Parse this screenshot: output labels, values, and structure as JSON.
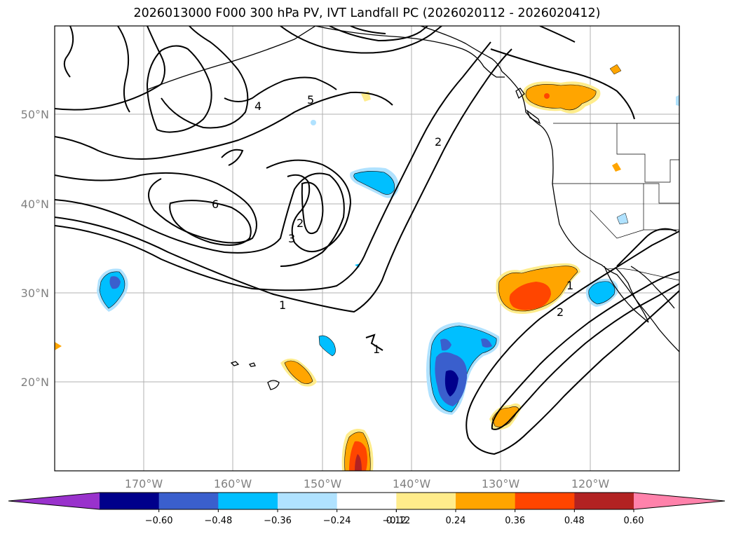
{
  "title": "2026013000 F000 300 hPa PV, IVT Landfall PC (2026020112 - 2026020412)",
  "map": {
    "lat_labels": [
      "50°N",
      "40°N",
      "30°N",
      "20°N"
    ],
    "lon_labels": [
      "170°W",
      "160°W",
      "150°W",
      "140°W",
      "130°W",
      "120°W"
    ],
    "gridlines": true,
    "pv_contour_labels": [
      "1",
      "2",
      "3",
      "4",
      "5",
      "6",
      "1",
      "2",
      "1",
      "2"
    ],
    "filled_field": "IVT Landfall PC",
    "contour_field": "300 hPa PV"
  },
  "colorbar": {
    "ticks": [
      "−0.60",
      "−0.48",
      "−0.36",
      "−0.24",
      "−0.12",
      "0.12",
      "0.24",
      "0.36",
      "0.48",
      "0.60"
    ],
    "colors": [
      "#9932cc",
      "#00008b",
      "#3a5fcd",
      "#00bfff",
      "#b0e2ff",
      "#ffffff",
      "#ffec8b",
      "#ffa500",
      "#ff4500",
      "#b22222",
      "#ff82ab"
    ],
    "extend": "both"
  }
}
